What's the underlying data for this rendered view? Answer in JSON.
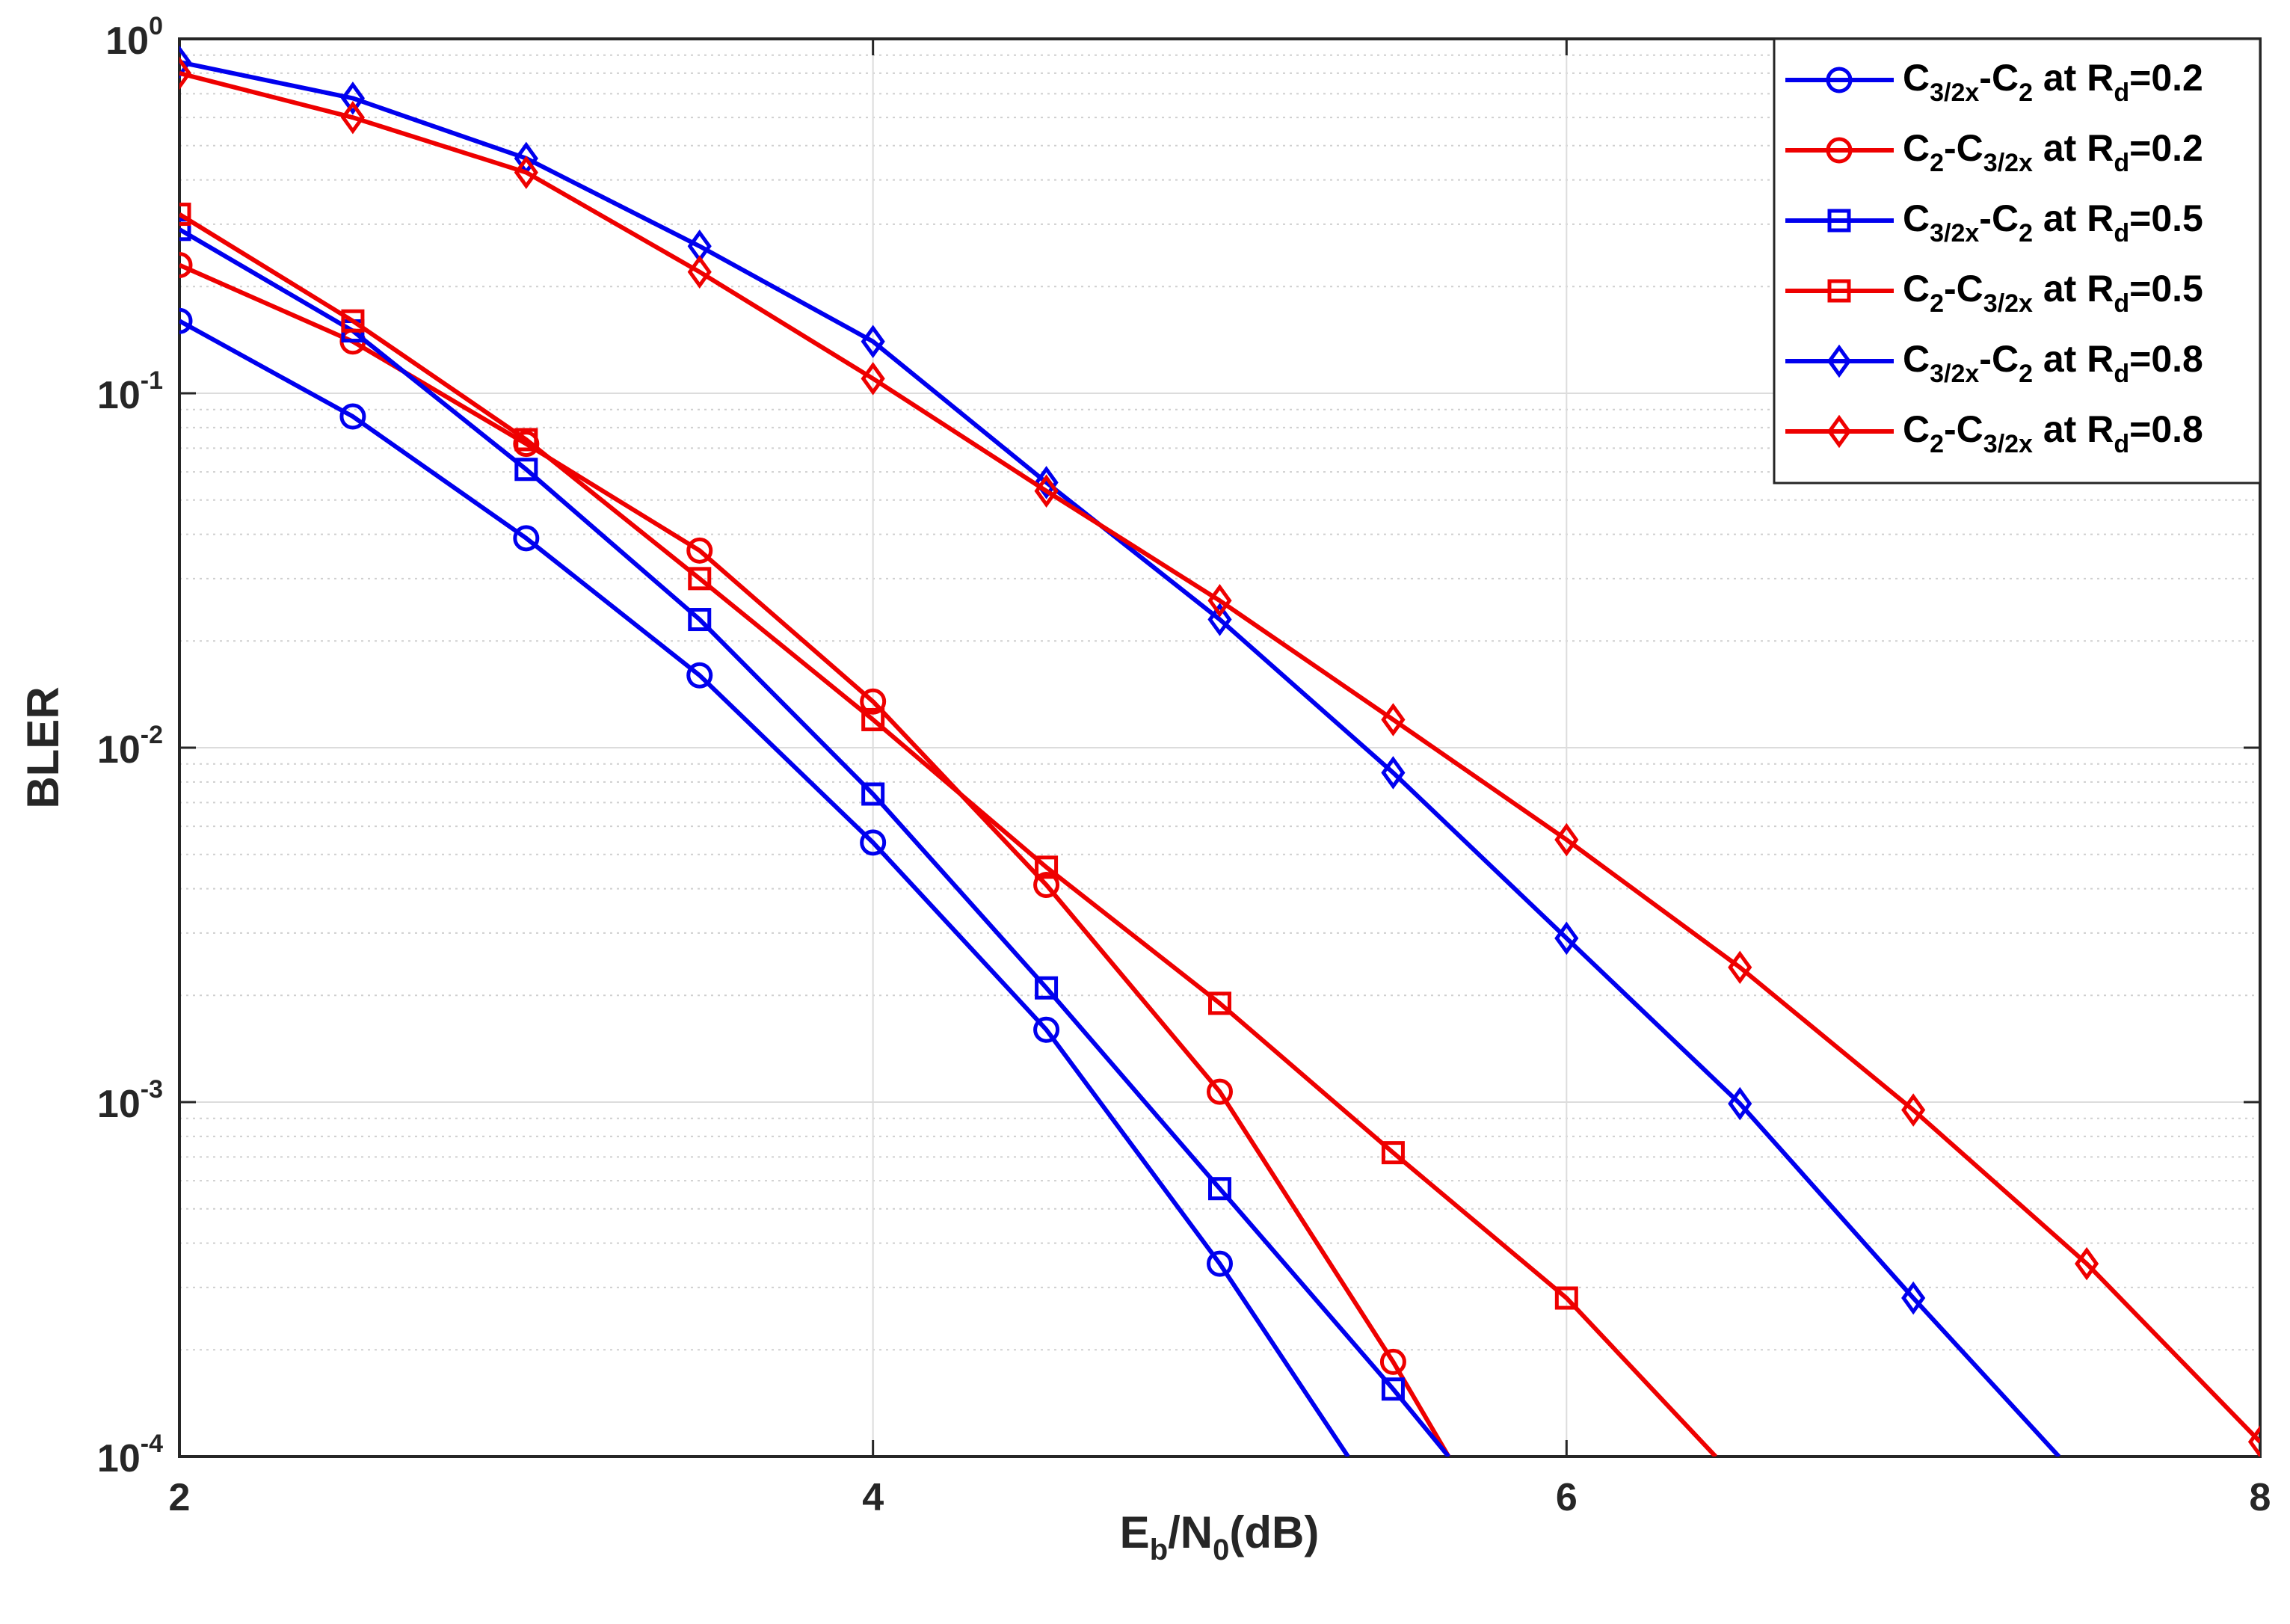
{
  "chart_data": {
    "type": "line",
    "yscale": "log",
    "xlabel": {
      "main": "E",
      "sub1": "b",
      "mid": "/N",
      "sub2": "0",
      "tail": "(dB)"
    },
    "ylabel": "BLER",
    "xlim": [
      2,
      8
    ],
    "ylim": [
      0.0001,
      1
    ],
    "xticks": [
      {
        "value": 2,
        "label": "2"
      },
      {
        "value": 4,
        "label": "4"
      },
      {
        "value": 6,
        "label": "6"
      },
      {
        "value": 8,
        "label": "8"
      }
    ],
    "yticks": [
      {
        "value": 1,
        "base": "10",
        "exp": "0"
      },
      {
        "value": 0.1,
        "base": "10",
        "exp": "-1"
      },
      {
        "value": 0.01,
        "base": "10",
        "exp": "-2"
      },
      {
        "value": 0.001,
        "base": "10",
        "exp": "-3"
      },
      {
        "value": 0.0001,
        "base": "10",
        "exp": "-4"
      }
    ],
    "grid": true,
    "legend_position": "top-right",
    "series": [
      {
        "name": "C3/2x-C2 at Rd=0.2",
        "color": "#0000ee",
        "marker": "circle",
        "label": {
          "p1": "C",
          "s1": "3/2x",
          "p2": "-C",
          "s2": "2",
          "p3": " at R",
          "s3": "d",
          "p4": "=0.2"
        },
        "x": [
          2,
          2.5,
          3,
          3.5,
          4,
          4.5,
          5,
          5.37
        ],
        "y": [
          0.16,
          0.086,
          0.039,
          0.016,
          0.0054,
          0.0016,
          0.00035,
          0.0001
        ]
      },
      {
        "name": "C2-C3/2x at Rd=0.2",
        "color": "#ee0000",
        "marker": "circle",
        "label": {
          "p1": "C",
          "s1": "2",
          "p2": "-C",
          "s2": "3/2x",
          "p3": " at R",
          "s3": "d",
          "p4": "=0.2"
        },
        "x": [
          2,
          2.5,
          3,
          3.5,
          4,
          4.5,
          5,
          5.5,
          5.66
        ],
        "y": [
          0.23,
          0.14,
          0.072,
          0.036,
          0.0135,
          0.0041,
          0.00107,
          0.000185,
          0.0001
        ]
      },
      {
        "name": "C3/2x-C2 at Rd=0.5",
        "color": "#0000ee",
        "marker": "square",
        "label": {
          "p1": "C",
          "s1": "3/2x",
          "p2": "-C",
          "s2": "2",
          "p3": " at R",
          "s3": "d",
          "p4": "=0.5"
        },
        "x": [
          2,
          2.5,
          3,
          3.5,
          4,
          4.5,
          5,
          5.5,
          5.66
        ],
        "y": [
          0.29,
          0.15,
          0.061,
          0.023,
          0.0074,
          0.0021,
          0.00057,
          0.000155,
          0.0001
        ]
      },
      {
        "name": "C2-C3/2x at Rd=0.5",
        "color": "#ee0000",
        "marker": "square",
        "label": {
          "p1": "C",
          "s1": "2",
          "p2": "-C",
          "s2": "3/2x",
          "p3": " at R",
          "s3": "d",
          "p4": "=0.5"
        },
        "x": [
          2,
          2.5,
          3,
          3.5,
          4,
          4.5,
          5,
          5.5,
          6,
          6.43
        ],
        "y": [
          0.32,
          0.16,
          0.074,
          0.03,
          0.012,
          0.0046,
          0.0019,
          0.00072,
          0.00028,
          0.0001
        ]
      },
      {
        "name": "C3/2x-C2 at Rd=0.8",
        "color": "#0000ee",
        "marker": "diamond",
        "label": {
          "p1": "C",
          "s1": "3/2x",
          "p2": "-C",
          "s2": "2",
          "p3": " at R",
          "s3": "d",
          "p4": "=0.8"
        },
        "x": [
          2,
          2.5,
          3,
          3.5,
          4,
          4.5,
          5,
          5.5,
          6,
          6.5,
          7,
          7.42
        ],
        "y": [
          0.86,
          0.68,
          0.46,
          0.26,
          0.14,
          0.056,
          0.023,
          0.0085,
          0.0029,
          0.00099,
          0.00028,
          0.0001
        ]
      },
      {
        "name": "C2-C3/2x at Rd=0.8",
        "color": "#ee0000",
        "marker": "diamond",
        "label": {
          "p1": "C",
          "s1": "2",
          "p2": "-C",
          "s2": "3/2x",
          "p3": " at R",
          "s3": "d",
          "p4": "=0.8"
        },
        "x": [
          2,
          2.5,
          3,
          3.5,
          4,
          4.5,
          5,
          5.5,
          6,
          6.5,
          7,
          7.5,
          8
        ],
        "y": [
          0.8,
          0.6,
          0.42,
          0.22,
          0.11,
          0.053,
          0.026,
          0.012,
          0.0055,
          0.0024,
          0.00095,
          0.00035,
          0.00011
        ]
      }
    ]
  }
}
